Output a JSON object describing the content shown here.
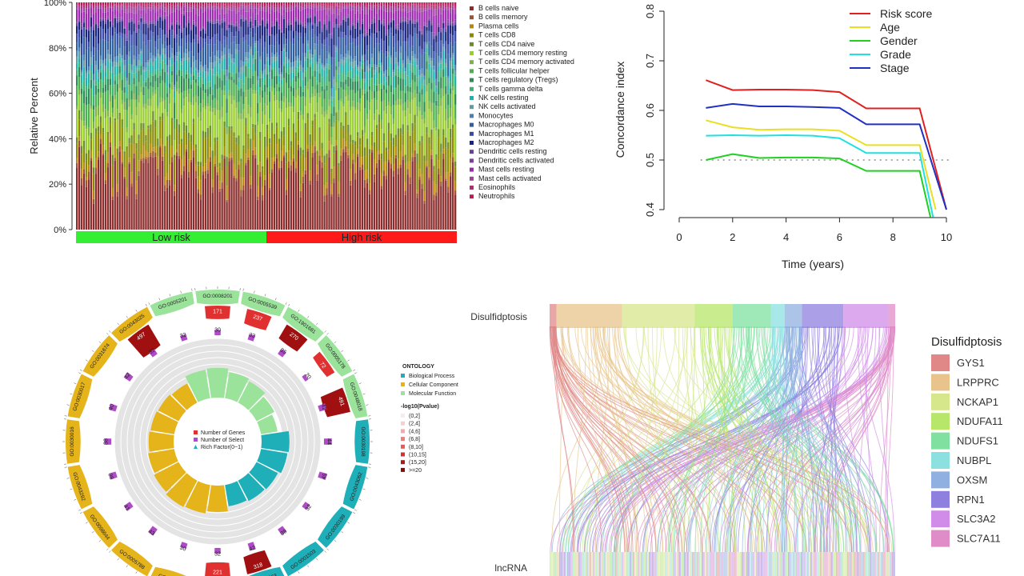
{
  "colors": {
    "immune": [
      "#8B2D2D",
      "#A0522D",
      "#B8860B",
      "#8B8B00",
      "#6B8E23",
      "#9ACD32",
      "#7CB342",
      "#4CAF50",
      "#2E8B57",
      "#3CB371",
      "#20B2AA",
      "#5F9EA0",
      "#4682B4",
      "#2F5F9F",
      "#3949AB",
      "#1A237E",
      "#6A3FA0",
      "#7E3F9F",
      "#9C27B0",
      "#A0409F",
      "#B0306F",
      "#C2185B"
    ],
    "risk_low": "#33EE33",
    "risk_high": "#FF1A1A",
    "go_bp": "#E5B31A",
    "go_cc": "#1FAFB8",
    "go_mf": "#9BE39B",
    "go_bar_dark": "#A01010",
    "go_bar_light": "#E03030",
    "go_select": "#B04BC8",
    "sankey": [
      "#E08888",
      "#E8C48C",
      "#D6E68A",
      "#B7E66A",
      "#7FE0A0",
      "#8CE0E0",
      "#8FB0E0",
      "#8F80E0",
      "#D08CE8",
      "#E08CC8"
    ]
  },
  "chart_data": [
    {
      "type": "bar",
      "subtype": "stacked-100",
      "ylabel": "Relative Percent",
      "ytick_labels": [
        "0%",
        "20%",
        "40%",
        "60%",
        "80%",
        "100%"
      ],
      "groups": [
        {
          "label": "Low risk"
        },
        {
          "label": "High risk"
        }
      ],
      "series": [
        {
          "name": "B cells naive"
        },
        {
          "name": "B cells memory"
        },
        {
          "name": "Plasma cells"
        },
        {
          "name": "T cells CD8"
        },
        {
          "name": "T cells CD4 naive"
        },
        {
          "name": "T cells CD4 memory resting"
        },
        {
          "name": "T cells CD4 memory activated"
        },
        {
          "name": "T cells follicular helper"
        },
        {
          "name": "T cells regulatory (Tregs)"
        },
        {
          "name": "T cells gamma delta"
        },
        {
          "name": "NK cells resting"
        },
        {
          "name": "NK cells activated"
        },
        {
          "name": "Monocytes"
        },
        {
          "name": "Macrophages M0"
        },
        {
          "name": "Macrophages M1"
        },
        {
          "name": "Macrophages M2"
        },
        {
          "name": "Dendritic cells resting"
        },
        {
          "name": "Dendritic cells activated"
        },
        {
          "name": "Mast cells resting"
        },
        {
          "name": "Mast cells activated"
        },
        {
          "name": "Eosinophils"
        },
        {
          "name": "Neutrophils"
        }
      ],
      "mean_fraction": [
        0.27,
        0.02,
        0.04,
        0.09,
        0.03,
        0.12,
        0.03,
        0.06,
        0.04,
        0.03,
        0.04,
        0.02,
        0.02,
        0.07,
        0.04,
        0.05,
        0.01,
        0.01,
        0.05,
        0.02,
        0.01,
        0.01
      ],
      "legend_position": "right"
    },
    {
      "type": "line",
      "xlabel": "Time (years)",
      "ylabel": "Concordance index",
      "xlim": [
        0,
        10
      ],
      "ylim": [
        0.4,
        0.8
      ],
      "xticks": [
        "0",
        "2",
        "4",
        "6",
        "8",
        "10"
      ],
      "yticks": [
        "0.4",
        "0.5",
        "0.6",
        "0.7",
        "0.8"
      ],
      "reference_line": 0.5,
      "legend_position": "top-right",
      "series": [
        {
          "name": "Risk score",
          "color": "#E02020",
          "points": [
            [
              1,
              0.661
            ],
            [
              2,
              0.641
            ],
            [
              3,
              0.642
            ],
            [
              4,
              0.642
            ],
            [
              5,
              0.641
            ],
            [
              6,
              0.637
            ],
            [
              7,
              0.604
            ],
            [
              8,
              0.604
            ],
            [
              9,
              0.604
            ],
            [
              10,
              0.4
            ]
          ]
        },
        {
          "name": "Age",
          "color": "#E8E020",
          "points": [
            [
              1,
              0.58
            ],
            [
              2,
              0.566
            ],
            [
              3,
              0.561
            ],
            [
              4,
              0.562
            ],
            [
              5,
              0.562
            ],
            [
              6,
              0.559
            ],
            [
              7,
              0.53
            ],
            [
              8,
              0.53
            ],
            [
              9,
              0.53
            ],
            [
              9.6,
              0.4
            ]
          ]
        },
        {
          "name": "Gender",
          "color": "#20D020",
          "points": [
            [
              1,
              0.5
            ],
            [
              2,
              0.512
            ],
            [
              3,
              0.504
            ],
            [
              4,
              0.505
            ],
            [
              5,
              0.505
            ],
            [
              6,
              0.503
            ],
            [
              7,
              0.478
            ],
            [
              8,
              0.478
            ],
            [
              9,
              0.478
            ],
            [
              9.4,
              0.385
            ]
          ]
        },
        {
          "name": "Grade",
          "color": "#20E0E0",
          "points": [
            [
              1,
              0.549
            ],
            [
              2,
              0.55
            ],
            [
              3,
              0.549
            ],
            [
              4,
              0.55
            ],
            [
              5,
              0.549
            ],
            [
              6,
              0.544
            ],
            [
              7,
              0.514
            ],
            [
              8,
              0.514
            ],
            [
              9,
              0.514
            ],
            [
              9.5,
              0.385
            ]
          ]
        },
        {
          "name": "Stage",
          "color": "#2030C0",
          "points": [
            [
              1,
              0.605
            ],
            [
              2,
              0.613
            ],
            [
              3,
              0.608
            ],
            [
              4,
              0.608
            ],
            [
              5,
              0.607
            ],
            [
              6,
              0.605
            ],
            [
              7,
              0.572
            ],
            [
              8,
              0.572
            ],
            [
              9,
              0.572
            ],
            [
              10,
              0.4
            ]
          ]
        }
      ]
    },
    {
      "type": "circos",
      "legend_title": "ONTOLOGY",
      "ontologies": [
        {
          "name": "Biological Process",
          "color": "#1FAFB8"
        },
        {
          "name": "Cellular Component",
          "color": "#E5B31A"
        },
        {
          "name": "Molecular Function",
          "color": "#9BE39B"
        }
      ],
      "pvalue_title": "-log10(Pvalue)",
      "pvalue_bins": [
        "(0,2]",
        "(2,4]",
        "(4,6]",
        "(6,8]",
        "(8,10]",
        "(10,15]",
        "(15,20]",
        ">=20"
      ],
      "inner_legend": [
        "Number of Genes",
        "Number of Select",
        "Rich Factor(0~1)"
      ],
      "terms": [
        {
          "id": "GO:0008201",
          "genes": 171,
          "select": 30,
          "rich": 0.62,
          "ont": "Molecular Function"
        },
        {
          "id": "GO:0005539",
          "genes": 237,
          "select": 33,
          "rich": 0.55,
          "ont": "Molecular Function"
        },
        {
          "id": "GO:1901681",
          "genes": 270,
          "select": 35,
          "rich": 0.5,
          "ont": "Molecular Function"
        },
        {
          "id": "GO:0005178",
          "genes": 72,
          "select": 20,
          "rich": 0.42,
          "ont": "Molecular Function"
        },
        {
          "id": "GO:0048018",
          "genes": 491,
          "select": 42,
          "rich": 0.35,
          "ont": "Molecular Function"
        },
        {
          "id": "GO:0030198",
          "genes": 0,
          "select": 44,
          "rich": 0.58,
          "ont": "Biological Process"
        },
        {
          "id": "GO:0043062",
          "genes": 0,
          "select": 45,
          "rich": 0.56,
          "ont": "Biological Process"
        },
        {
          "id": "GO:0030199",
          "genes": 0,
          "select": 32,
          "rich": 0.5,
          "ont": "Biological Process"
        },
        {
          "id": "GO:0001503",
          "genes": 0,
          "select": 38,
          "rich": 0.48,
          "ont": "Biological Process"
        },
        {
          "id": "GO:0032963",
          "genes": 318,
          "select": 42,
          "rich": 0.45,
          "ont": "Biological Process"
        },
        {
          "id": "GO:0062023",
          "genes": 221,
          "select": 32,
          "rich": 0.55,
          "ont": "Cellular Component"
        },
        {
          "id": "GO:0031012",
          "genes": 0,
          "select": 30,
          "rich": 0.6,
          "ont": "Cellular Component"
        },
        {
          "id": "GO:0005788",
          "genes": 0,
          "select": 43,
          "rich": 0.62,
          "ont": "Cellular Component"
        },
        {
          "id": "GO:0098644",
          "genes": 0,
          "select": 41,
          "rich": 0.58,
          "ont": "Cellular Component"
        },
        {
          "id": "GO:0043292",
          "genes": 0,
          "select": 38,
          "rich": 0.55,
          "ont": "Cellular Component"
        },
        {
          "id": "GO:0030016",
          "genes": 0,
          "select": 38,
          "rich": 0.52,
          "ont": "Cellular Component"
        },
        {
          "id": "GO:0030017",
          "genes": 0,
          "select": 40,
          "rich": 0.5,
          "ont": "Cellular Component"
        },
        {
          "id": "GO:0031674",
          "genes": 0,
          "select": 42,
          "rich": 0.48,
          "ont": "Cellular Component"
        },
        {
          "id": "GO:0043025",
          "genes": 497,
          "select": 32,
          "rich": 0.45,
          "ont": "Cellular Component"
        },
        {
          "id": "GO:0005201",
          "genes": 0,
          "select": 32,
          "rich": 0.6,
          "ont": "Molecular Function"
        }
      ]
    },
    {
      "type": "sankey",
      "source_label": "Disulfidptosis",
      "target_label": "lncRNA",
      "legend_title": "Disulfidptosis",
      "genes": [
        "GYS1",
        "LRPPRC",
        "NCKAP1",
        "NDUFA11",
        "NDUFS1",
        "NUBPL",
        "OXSM",
        "RPN1",
        "SLC3A2",
        "SLC7A11"
      ],
      "gene_share": [
        0.02,
        0.19,
        0.21,
        0.11,
        0.11,
        0.04,
        0.05,
        0.12,
        0.13,
        0.02
      ]
    }
  ]
}
